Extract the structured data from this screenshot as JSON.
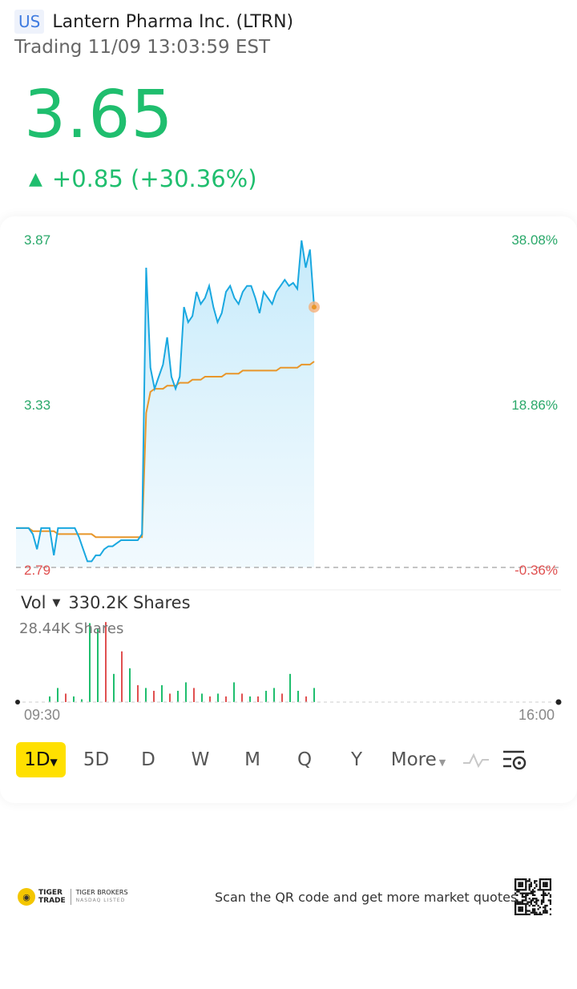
{
  "header": {
    "market_badge": "US",
    "stock_name": "Lantern Pharma Inc. (LTRN)",
    "trading_status": "Trading 11/09 13:03:59 EST"
  },
  "quote": {
    "price": "3.65",
    "change_arrow": "▲",
    "change": "+0.85 (+30.36%)"
  },
  "chart": {
    "y_left_labels": [
      "3.87",
      "3.33",
      "2.79"
    ],
    "y_right_labels": [
      "38.08%",
      "18.86%",
      "-0.36%"
    ],
    "time_start": "09:30",
    "time_end": "16:00"
  },
  "chart_data": {
    "type": "line",
    "series": [
      {
        "values": [
          2.92,
          2.92,
          2.92,
          2.92,
          2.9,
          2.85,
          2.92,
          2.92,
          2.92,
          2.83,
          2.92,
          2.92,
          2.92,
          2.92,
          2.92,
          2.89,
          2.85,
          2.81,
          2.81,
          2.83,
          2.83,
          2.85,
          2.86,
          2.86,
          2.87,
          2.88,
          2.88,
          2.88,
          2.88,
          2.88,
          2.9,
          3.78,
          3.45,
          3.38,
          3.42,
          3.46,
          3.55,
          3.42,
          3.38,
          3.42,
          3.65,
          3.6,
          3.62,
          3.7,
          3.66,
          3.68,
          3.72,
          3.65,
          3.6,
          3.63,
          3.7,
          3.72,
          3.68,
          3.66,
          3.7,
          3.72,
          3.72,
          3.68,
          3.63,
          3.7,
          3.68,
          3.66,
          3.7,
          3.72,
          3.74,
          3.72,
          3.73,
          3.71,
          3.87,
          3.78,
          3.84,
          3.65
        ]
      },
      {
        "values": [
          2.92,
          2.92,
          2.92,
          2.92,
          2.91,
          2.91,
          2.91,
          2.91,
          2.91,
          2.91,
          2.9,
          2.9,
          2.9,
          2.9,
          2.9,
          2.9,
          2.9,
          2.9,
          2.9,
          2.89,
          2.89,
          2.89,
          2.89,
          2.89,
          2.89,
          2.89,
          2.89,
          2.89,
          2.89,
          2.89,
          2.89,
          3.3,
          3.37,
          3.38,
          3.38,
          3.38,
          3.39,
          3.39,
          3.39,
          3.4,
          3.4,
          3.4,
          3.41,
          3.41,
          3.41,
          3.42,
          3.42,
          3.42,
          3.42,
          3.42,
          3.43,
          3.43,
          3.43,
          3.43,
          3.44,
          3.44,
          3.44,
          3.44,
          3.44,
          3.44,
          3.44,
          3.44,
          3.44,
          3.45,
          3.45,
          3.45,
          3.45,
          3.45,
          3.46,
          3.46,
          3.46,
          3.47
        ]
      }
    ],
    "ylim": [
      2.79,
      3.87
    ],
    "reference_line": 2.79,
    "last_price": 3.65
  },
  "volume": {
    "label": "Vol",
    "caret": "▼",
    "total": "330.2K Shares",
    "max_label": "28.44K Shares",
    "bars": [
      {
        "v": 2,
        "c": "green"
      },
      {
        "v": 5,
        "c": "green"
      },
      {
        "v": 3,
        "c": "red"
      },
      {
        "v": 2,
        "c": "green"
      },
      {
        "v": 1,
        "c": "green"
      },
      {
        "v": 28,
        "c": "green"
      },
      {
        "v": 26,
        "c": "green"
      },
      {
        "v": 28.4,
        "c": "red"
      },
      {
        "v": 10,
        "c": "green"
      },
      {
        "v": 18,
        "c": "red"
      },
      {
        "v": 12,
        "c": "green"
      },
      {
        "v": 6,
        "c": "red"
      },
      {
        "v": 5,
        "c": "green"
      },
      {
        "v": 4,
        "c": "red"
      },
      {
        "v": 6,
        "c": "green"
      },
      {
        "v": 3,
        "c": "red"
      },
      {
        "v": 4,
        "c": "green"
      },
      {
        "v": 7,
        "c": "green"
      },
      {
        "v": 5,
        "c": "red"
      },
      {
        "v": 3,
        "c": "green"
      },
      {
        "v": 2,
        "c": "red"
      },
      {
        "v": 3,
        "c": "green"
      },
      {
        "v": 2,
        "c": "red"
      },
      {
        "v": 7,
        "c": "green"
      },
      {
        "v": 3,
        "c": "red"
      },
      {
        "v": 2,
        "c": "green"
      },
      {
        "v": 2,
        "c": "red"
      },
      {
        "v": 4,
        "c": "green"
      },
      {
        "v": 5,
        "c": "green"
      },
      {
        "v": 3,
        "c": "red"
      },
      {
        "v": 10,
        "c": "green"
      },
      {
        "v": 4,
        "c": "green"
      },
      {
        "v": 2,
        "c": "red"
      },
      {
        "v": 5,
        "c": "green"
      }
    ]
  },
  "periods": {
    "items": [
      "1D",
      "5D",
      "D",
      "W",
      "M",
      "Q",
      "Y",
      "More"
    ],
    "active_caret": "▼",
    "more_caret": "▼"
  },
  "footer": {
    "logo_line1": "TIGER",
    "logo_line2": "TRADE",
    "brokers_line1": "TIGER BROKERS",
    "brokers_line2": "NASDAQ LISTED",
    "scan_text": "Scan the QR code and get more market quotes"
  },
  "colors": {
    "up": "#1fbe6e",
    "down": "#e05050",
    "price_line": "#1aa8e0",
    "avg_line": "#e8962a",
    "active_period": "#ffe000"
  }
}
